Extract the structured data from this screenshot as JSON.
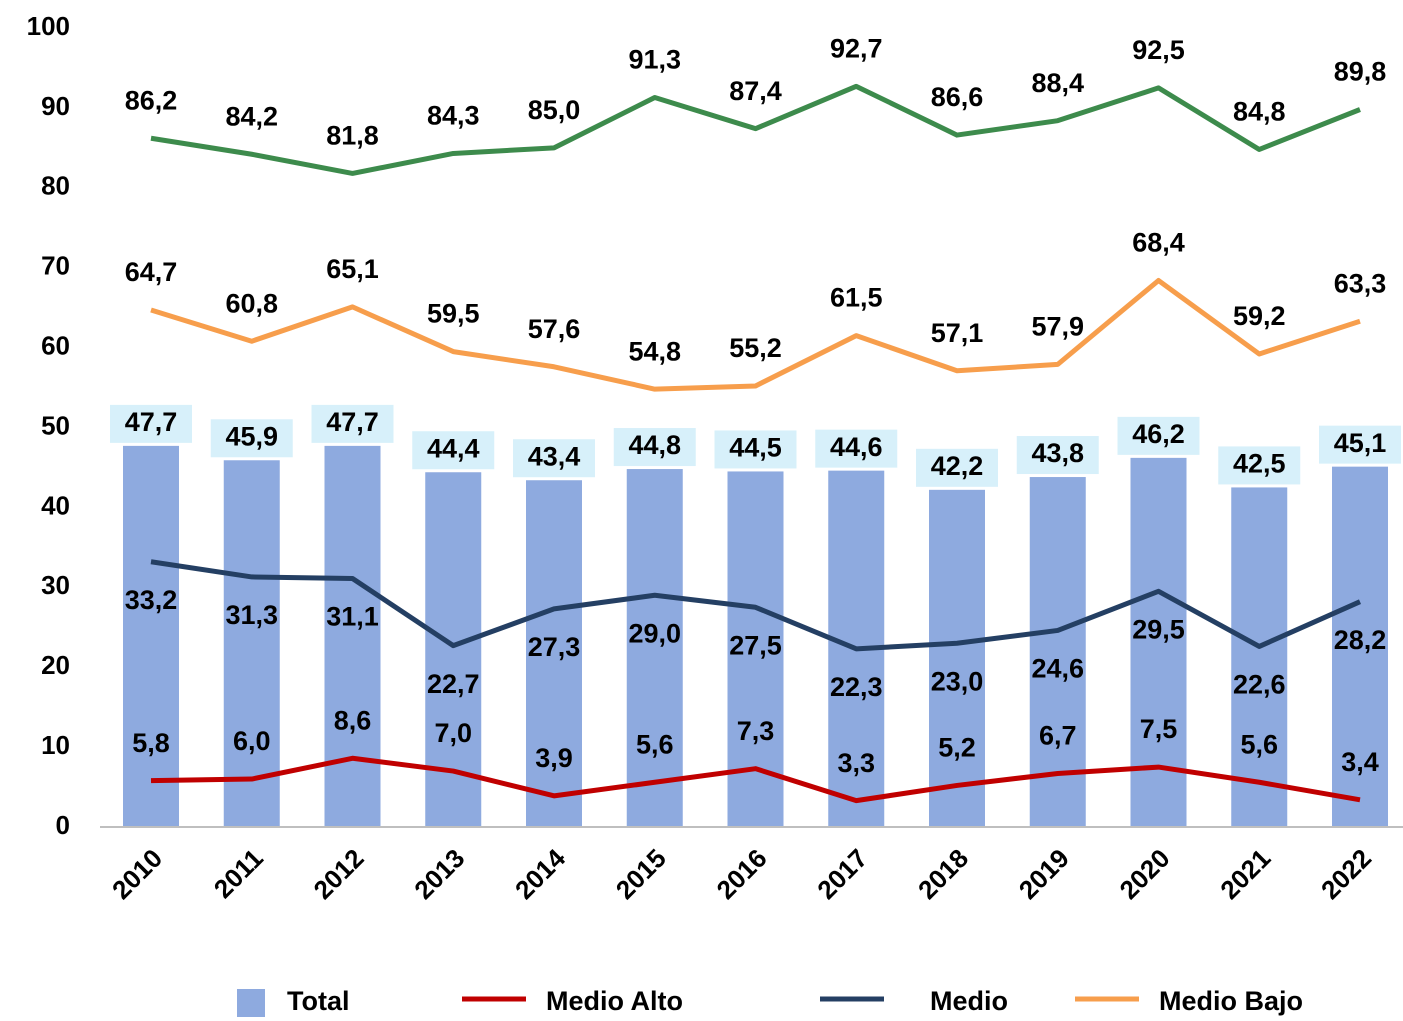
{
  "chart_data": {
    "type": "bar",
    "categories": [
      "2010",
      "2011",
      "2012",
      "2013",
      "2014",
      "2015",
      "2016",
      "2017",
      "2018",
      "2019",
      "2020",
      "2021",
      "2022"
    ],
    "ylim": [
      0,
      100
    ],
    "yticks": [
      0,
      10,
      20,
      30,
      40,
      50,
      60,
      70,
      80,
      90,
      100
    ],
    "grid": false,
    "legend": "bottom",
    "series": [
      {
        "name": "Total",
        "type": "bar",
        "color": "#8eaadf",
        "label_position": "above-box",
        "values": [
          47.7,
          45.9,
          47.7,
          44.4,
          43.4,
          44.8,
          44.5,
          44.6,
          42.2,
          43.8,
          46.2,
          42.5,
          45.1
        ],
        "value_labels": [
          "47,7",
          "45,9",
          "47,7",
          "44,4",
          "43,4",
          "44,8",
          "44,5",
          "44,6",
          "42,2",
          "43,8",
          "46,2",
          "42,5",
          "45,1"
        ]
      },
      {
        "name": "Medio Alto",
        "type": "line",
        "color": "#c00000",
        "label_position": "above",
        "values": [
          5.8,
          6.0,
          8.6,
          7.0,
          3.9,
          5.6,
          7.3,
          3.3,
          5.2,
          6.7,
          7.5,
          5.6,
          3.4
        ],
        "value_labels": [
          "5,8",
          "6,0",
          "8,6",
          "7,0",
          "3,9",
          "5,6",
          "7,3",
          "3,3",
          "5,2",
          "6,7",
          "7,5",
          "5,6",
          "3,4"
        ]
      },
      {
        "name": "Medio",
        "type": "line",
        "color": "#243f63",
        "label_position": "below",
        "values": [
          33.2,
          31.3,
          31.1,
          22.7,
          27.3,
          29.0,
          27.5,
          22.3,
          23.0,
          24.6,
          29.5,
          22.6,
          28.2
        ],
        "value_labels": [
          "33,2",
          "31,3",
          "31,1",
          "22,7",
          "27,3",
          "29,0",
          "27,5",
          "22,3",
          "23,0",
          "24,6",
          "29,5",
          "22,6",
          "28,2"
        ]
      },
      {
        "name": "Medio Bajo",
        "type": "line",
        "color": "#f79e4c",
        "label_position": "above",
        "values": [
          64.7,
          60.8,
          65.1,
          59.5,
          57.6,
          54.8,
          55.2,
          61.5,
          57.1,
          57.9,
          68.4,
          59.2,
          63.3
        ],
        "value_labels": [
          "64,7",
          "60,8",
          "65,1",
          "59,5",
          "57,6",
          "54,8",
          "55,2",
          "61,5",
          "57,1",
          "57,9",
          "68,4",
          "59,2",
          "63,3"
        ]
      },
      {
        "type": "line",
        "color": "#3d8b4c",
        "label_position": "above",
        "values": [
          86.2,
          84.2,
          81.8,
          84.3,
          85.0,
          91.3,
          87.4,
          92.7,
          86.6,
          88.4,
          92.5,
          84.8,
          89.8
        ],
        "value_labels": [
          "86,2",
          "84,2",
          "81,8",
          "84,3",
          "85,0",
          "91,3",
          "87,4",
          "92,7",
          "86,6",
          "88,4",
          "92,5",
          "84,8",
          "89,8"
        ]
      }
    ]
  }
}
